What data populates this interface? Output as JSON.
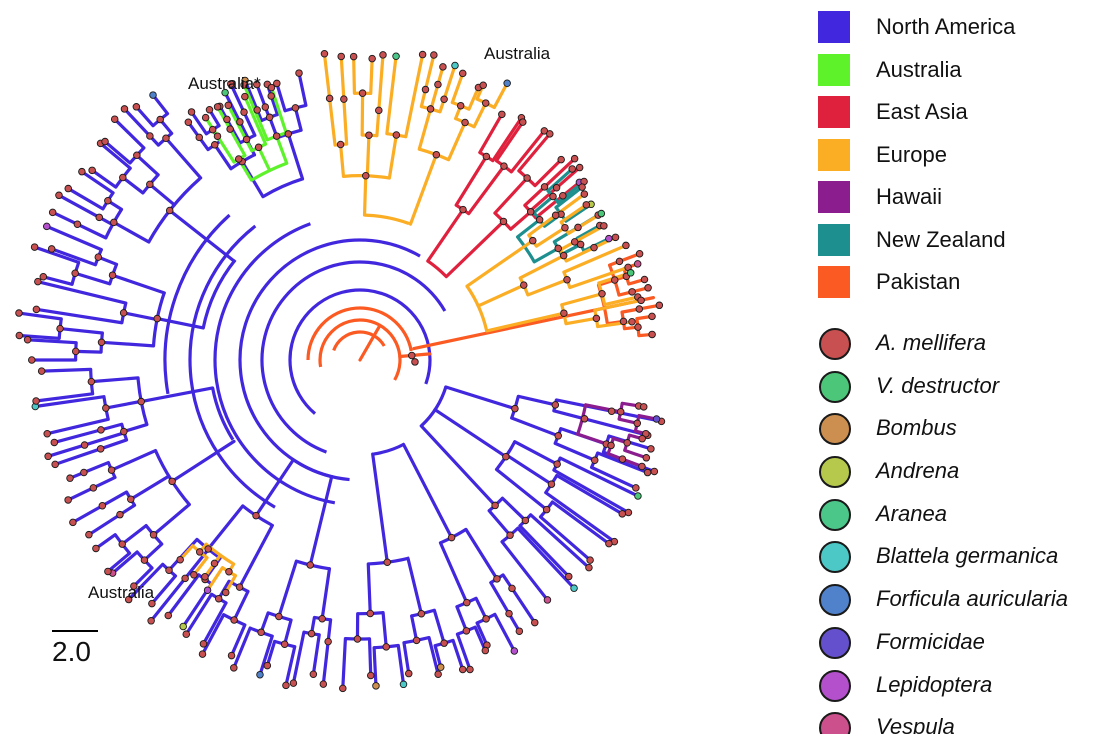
{
  "figure": {
    "tree_labels": [
      {
        "id": "aus-star",
        "text": "Australia*"
      },
      {
        "id": "aus-top",
        "text": "Australia"
      },
      {
        "id": "aus-bottom",
        "text": "Australia"
      }
    ],
    "scale": {
      "label": "2.0"
    }
  },
  "legend": {
    "regions": [
      {
        "name": "North America",
        "color": "#4127dd"
      },
      {
        "name": "Australia",
        "color": "#5ef22b"
      },
      {
        "name": "East Asia",
        "color": "#e0213e"
      },
      {
        "name": "Europe",
        "color": "#fbad24"
      },
      {
        "name": "Hawaii",
        "color": "#8c1d8e"
      },
      {
        "name": "New Zealand",
        "color": "#1e8f8f"
      },
      {
        "name": "Pakistan",
        "color": "#fb5a22"
      }
    ],
    "hosts": [
      {
        "name": "A. mellifera",
        "color": "#c85050"
      },
      {
        "name": "V. destructor",
        "color": "#4cc77a"
      },
      {
        "name": "Bombus",
        "color": "#cc8f50"
      },
      {
        "name": "Andrena",
        "color": "#b6c94c"
      },
      {
        "name": "Aranea",
        "color": "#4cc78a"
      },
      {
        "name": "Blattela germanica",
        "color": "#4cc9c6"
      },
      {
        "name": "Forficula auricularia",
        "color": "#5082cc"
      },
      {
        "name": "Formicidae",
        "color": "#6450cc"
      },
      {
        "name": "Lepidoptera",
        "color": "#b450cc"
      },
      {
        "name": "Vespula",
        "color": "#cc508c"
      }
    ]
  }
}
